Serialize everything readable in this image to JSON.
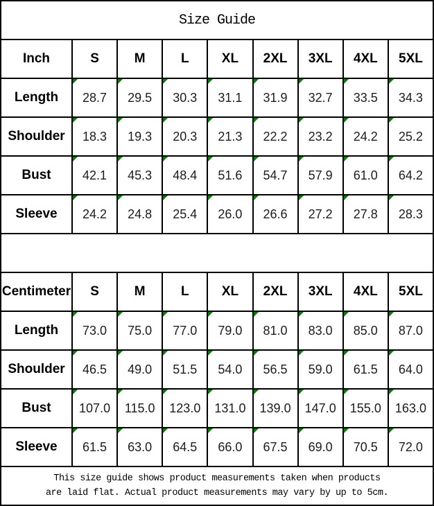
{
  "title": "Size Guide",
  "sizes": [
    "S",
    "M",
    "L",
    "XL",
    "2XL",
    "3XL",
    "4XL",
    "5XL"
  ],
  "tables": [
    {
      "unit": "Inch",
      "rows": [
        {
          "label": "Length",
          "values": [
            "28.7",
            "29.5",
            "30.3",
            "31.1",
            "31.9",
            "32.7",
            "33.5",
            "34.3"
          ]
        },
        {
          "label": "Shoulder",
          "values": [
            "18.3",
            "19.3",
            "20.3",
            "21.3",
            "22.2",
            "23.2",
            "24.2",
            "25.2"
          ]
        },
        {
          "label": "Bust",
          "values": [
            "42.1",
            "45.3",
            "48.4",
            "51.6",
            "54.7",
            "57.9",
            "61.0",
            "64.2"
          ]
        },
        {
          "label": "Sleeve",
          "values": [
            "24.2",
            "24.8",
            "25.4",
            "26.0",
            "26.6",
            "27.2",
            "27.8",
            "28.3"
          ]
        }
      ]
    },
    {
      "unit": "Centimeter",
      "rows": [
        {
          "label": "Length",
          "values": [
            "73.0",
            "75.0",
            "77.0",
            "79.0",
            "81.0",
            "83.0",
            "85.0",
            "87.0"
          ]
        },
        {
          "label": "Shoulder",
          "values": [
            "46.5",
            "49.0",
            "51.5",
            "54.0",
            "56.5",
            "59.0",
            "61.5",
            "64.0"
          ]
        },
        {
          "label": "Bust",
          "values": [
            "107.0",
            "115.0",
            "123.0",
            "131.0",
            "139.0",
            "147.0",
            "155.0",
            "163.0"
          ]
        },
        {
          "label": "Sleeve",
          "values": [
            "61.5",
            "63.0",
            "64.5",
            "66.0",
            "67.5",
            "69.0",
            "70.5",
            "72.0"
          ]
        }
      ]
    }
  ],
  "footer": {
    "line1": "This size guide shows product measurements taken when products",
    "line2": "are laid flat. Actual product measurements may vary by up to 5cm."
  },
  "colors": {
    "cell_marker_green": "#008000",
    "border_black": "#000000"
  },
  "icons": {
    "cell_marker": "triangle-corner-top-left"
  }
}
